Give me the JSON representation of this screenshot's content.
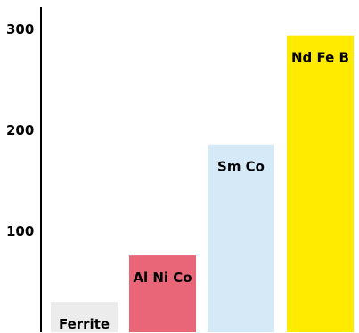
{
  "chart_data": {
    "type": "bar",
    "categories": [
      "Ferrite",
      "Al Ni Co",
      "Sm Co",
      "Nd Fe B"
    ],
    "values": [
      30,
      76,
      186,
      294
    ],
    "colors": [
      "#ececec",
      "#e86678",
      "#d6e9f7",
      "#ffeb00"
    ],
    "yticks": [
      "100",
      "200",
      "300"
    ],
    "ylim": [
      0,
      322
    ],
    "title": "",
    "xlabel": "",
    "ylabel": "",
    "grid": false,
    "legend": false
  }
}
